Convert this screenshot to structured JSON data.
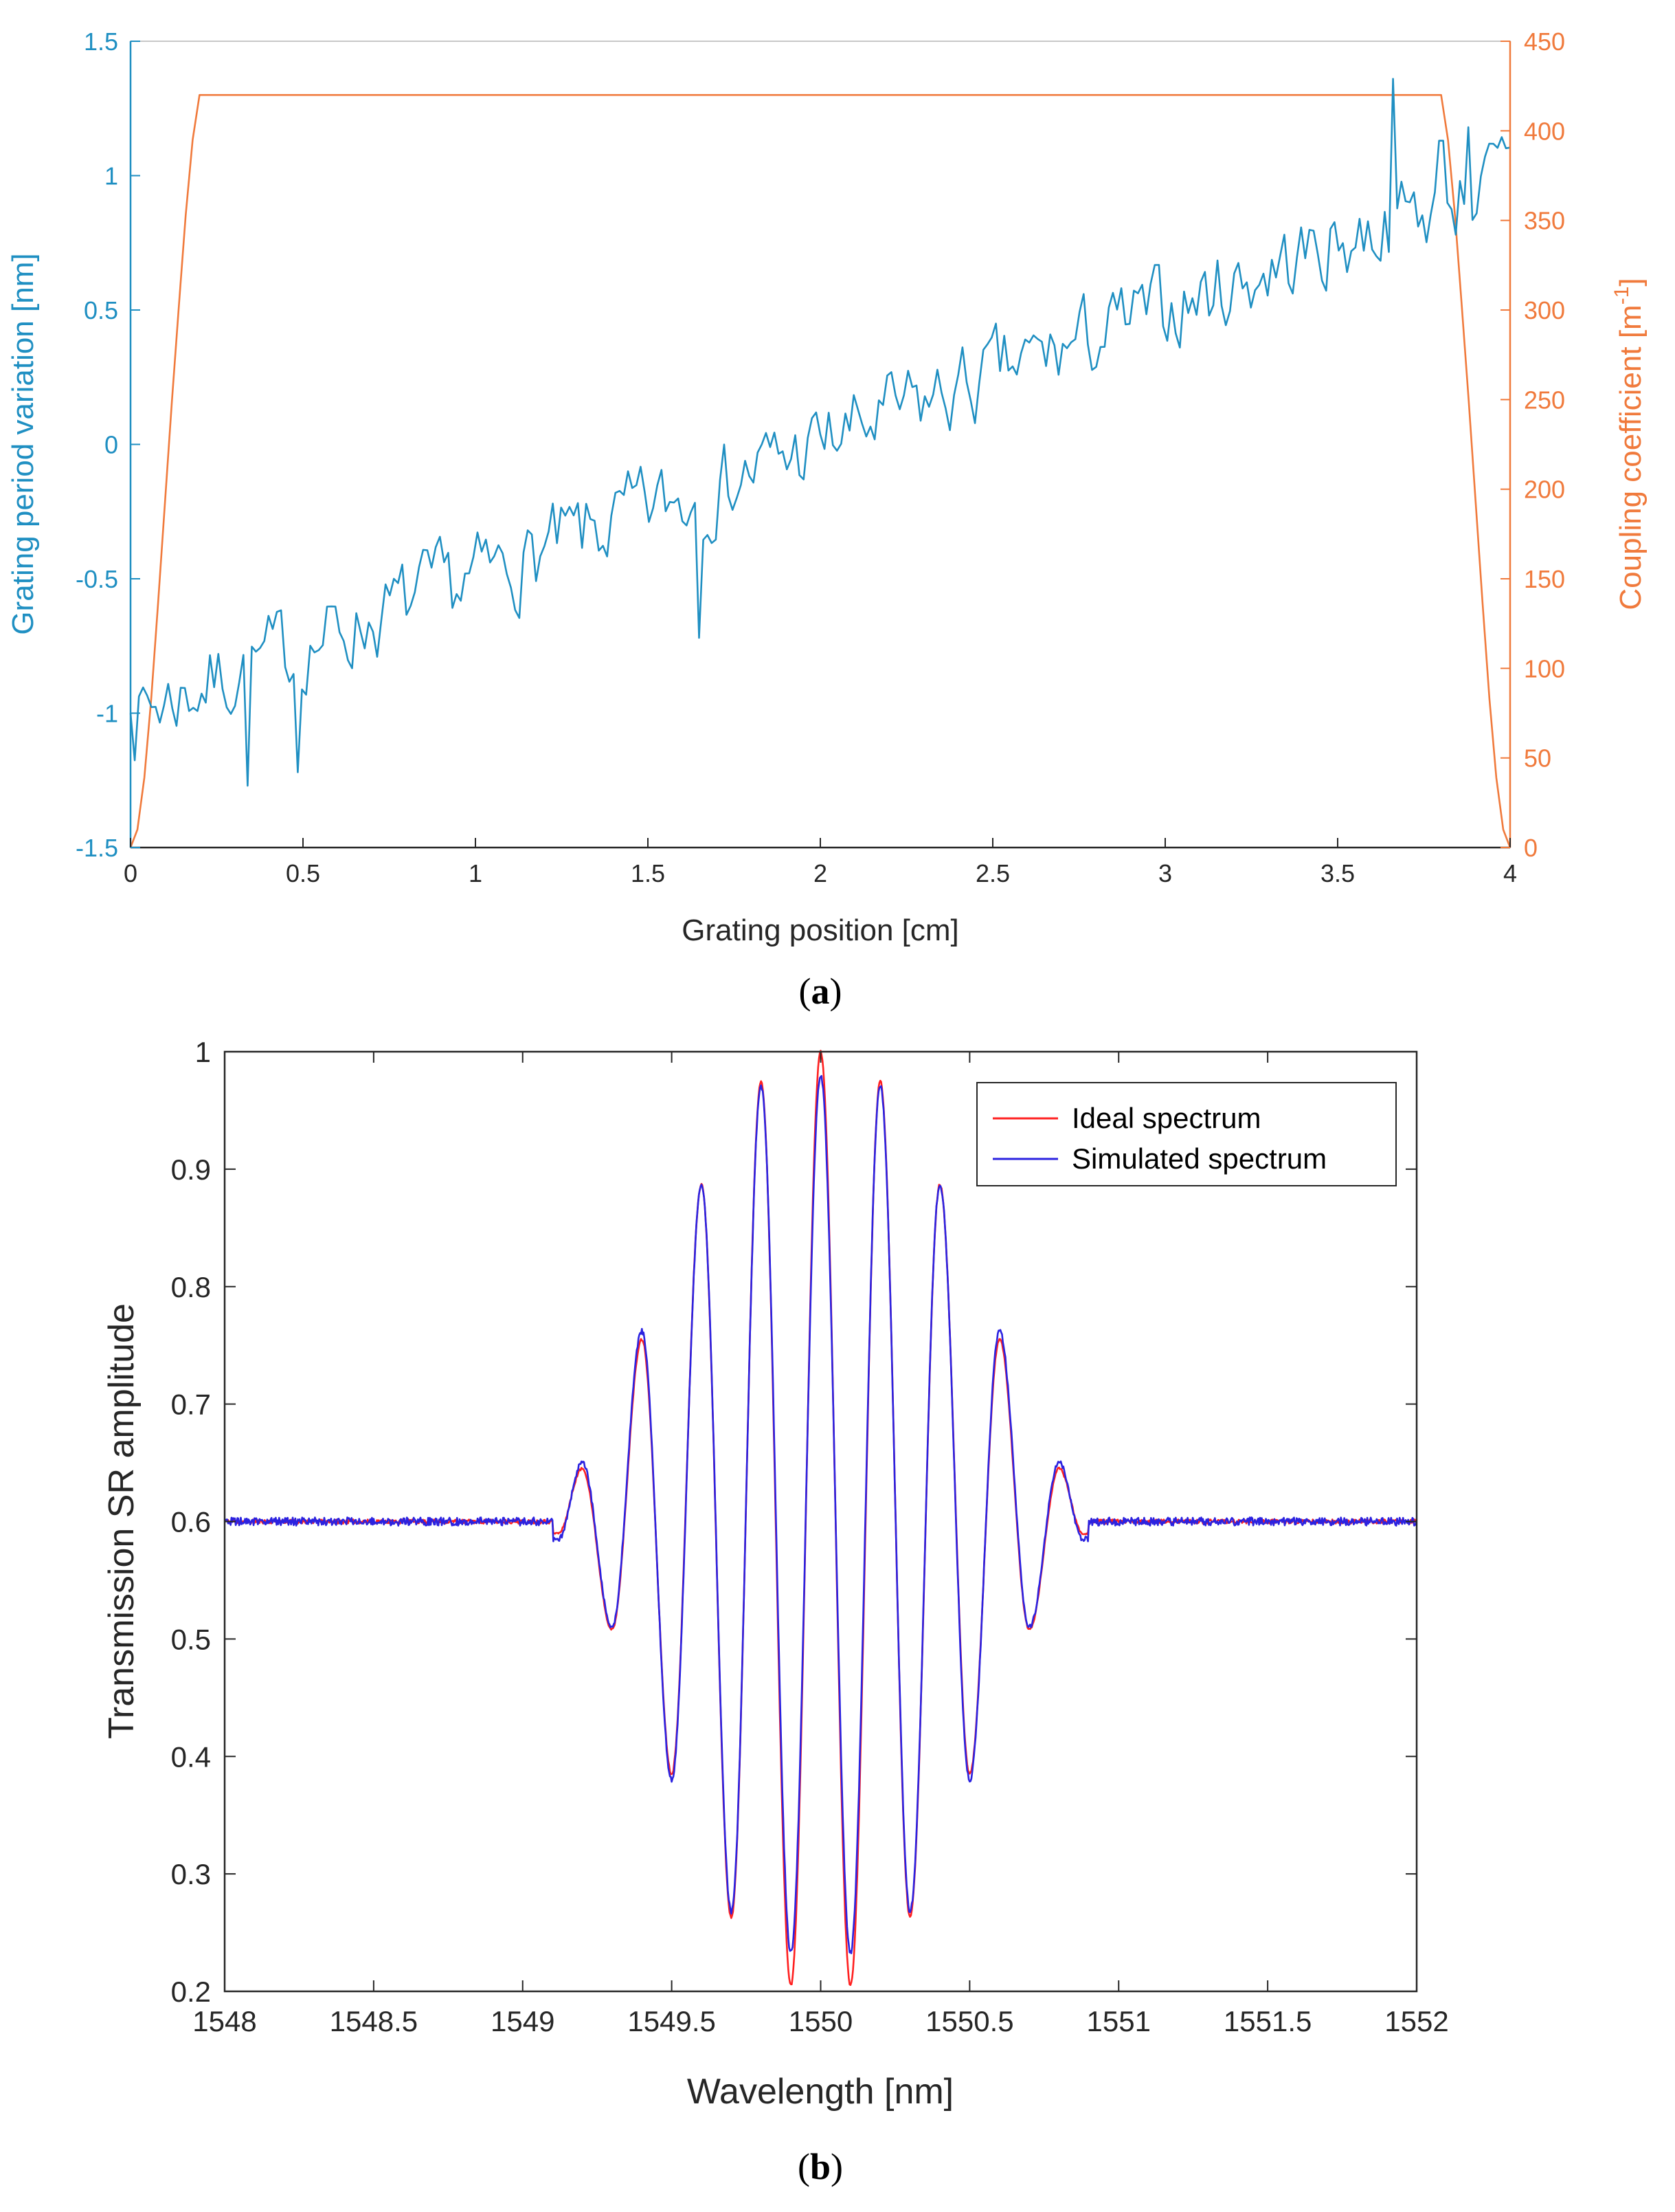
{
  "chart_data": [
    {
      "type": "line",
      "panel_label": "a",
      "xlabel": "Grating position [cm]",
      "ylabel_left": "Grating period variation [nm]",
      "ylabel_right_main": "Coupling coefficient [m",
      "ylabel_right_sup": "-1",
      "ylabel_right_end": "]",
      "xlim": [
        0,
        4
      ],
      "ylim_left": [
        -1.5,
        1.5
      ],
      "ylim_right": [
        0,
        450
      ],
      "xticks": [
        "0",
        "0.5",
        "1",
        "1.5",
        "2",
        "2.5",
        "3",
        "3.5",
        "4"
      ],
      "yticks_left": [
        "-1.5",
        "-1",
        "-0.5",
        "0",
        "0.5",
        "1",
        "1.5"
      ],
      "yticks_right": [
        "0",
        "50",
        "100",
        "150",
        "200",
        "250",
        "300",
        "350",
        "400",
        "450"
      ],
      "colors": {
        "left": "#1f8fc2",
        "right": "#f07a3c"
      },
      "series": [
        {
          "name": "Grating period variation",
          "axis": "left",
          "trend": {
            "x": [
              0,
              4
            ],
            "y": [
              -1.0,
              1.0
            ]
          },
          "noise_amplitude": 0.16,
          "seed": 7,
          "points": 330,
          "anchors": [
            [
              0.34,
              -1.27
            ],
            [
              0.49,
              -1.22
            ],
            [
              1.65,
              -0.72
            ],
            [
              3.66,
              1.36
            ],
            [
              3.8,
              1.13
            ],
            [
              3.88,
              1.18
            ]
          ]
        },
        {
          "name": "Coupling coefficient",
          "axis": "right",
          "x": [
            0,
            0.02,
            0.04,
            0.06,
            0.08,
            0.1,
            0.12,
            0.14,
            0.16,
            0.18,
            0.2,
            3.8,
            3.82,
            3.84,
            3.86,
            3.88,
            3.9,
            3.92,
            3.94,
            3.96,
            3.98,
            4.0
          ],
          "y": [
            0,
            10,
            39,
            83,
            137,
            193,
            249,
            302,
            353,
            395,
            420,
            420,
            395,
            353,
            302,
            249,
            193,
            137,
            83,
            39,
            10,
            0
          ]
        }
      ]
    },
    {
      "type": "line",
      "panel_label": "b",
      "xlabel": "Wavelength [nm]",
      "ylabel": "Transmission SR amplitude",
      "xlim": [
        1548,
        1552
      ],
      "ylim": [
        0.2,
        1
      ],
      "xticks": [
        "1548",
        "1548.5",
        "1549",
        "1549.5",
        "1550",
        "1550.5",
        "1551",
        "1551.5",
        "1552"
      ],
      "yticks": [
        "0.2",
        "0.3",
        "0.4",
        "0.5",
        "0.6",
        "0.7",
        "0.8",
        "0.9",
        "1"
      ],
      "legend": {
        "position": "top-right",
        "entries": [
          "Ideal spectrum",
          "Simulated spectrum"
        ]
      },
      "series": [
        {
          "name": "Ideal spectrum",
          "color": "#ff2020",
          "baseline": 0.6,
          "envelope": {
            "x": [
              1549.12,
              1549.4,
              1549.6,
              1549.8,
              1550.0,
              1550.2,
              1550.4,
              1550.6,
              1550.88
            ],
            "peaks": [
              0.645,
              0.755,
              0.887,
              0.975,
              1.0,
              0.975,
              0.887,
              0.755,
              0.645
            ]
          },
          "peaks": [
            [
              1549.2,
              0.645
            ],
            [
              1549.4,
              0.755
            ],
            [
              1549.6,
              0.887
            ],
            [
              1549.8,
              0.975
            ],
            [
              1550.0,
              1.0
            ],
            [
              1550.2,
              0.975
            ],
            [
              1550.4,
              0.887
            ],
            [
              1550.6,
              0.755
            ],
            [
              1550.8,
              0.645
            ]
          ],
          "troughs": [
            [
              1549.3,
              0.508
            ],
            [
              1549.5,
              0.385
            ],
            [
              1549.7,
              0.263
            ],
            [
              1549.9,
              0.205
            ],
            [
              1550.1,
              0.205
            ],
            [
              1550.3,
              0.263
            ],
            [
              1550.5,
              0.385
            ],
            [
              1550.7,
              0.508
            ]
          ],
          "shoulders": [
            [
              1549.12,
              0.59
            ],
            [
              1550.88,
              0.59
            ]
          ]
        },
        {
          "name": "Simulated spectrum",
          "color": "#2b22e0",
          "baseline": 0.6,
          "peaks": [
            [
              1549.2,
              0.65
            ],
            [
              1549.4,
              0.762
            ],
            [
              1549.6,
              0.887
            ],
            [
              1549.8,
              0.971
            ],
            [
              1550.0,
              0.98
            ],
            [
              1550.2,
              0.971
            ],
            [
              1550.4,
              0.887
            ],
            [
              1550.6,
              0.762
            ],
            [
              1550.8,
              0.65
            ]
          ],
          "troughs": [
            [
              1549.3,
              0.51
            ],
            [
              1549.5,
              0.38
            ],
            [
              1549.7,
              0.268
            ],
            [
              1549.9,
              0.233
            ],
            [
              1550.1,
              0.233
            ],
            [
              1550.3,
              0.268
            ],
            [
              1550.5,
              0.38
            ],
            [
              1550.7,
              0.51
            ]
          ],
          "shoulders": [
            [
              1549.12,
              0.585
            ],
            [
              1550.88,
              0.585
            ]
          ]
        }
      ]
    }
  ]
}
